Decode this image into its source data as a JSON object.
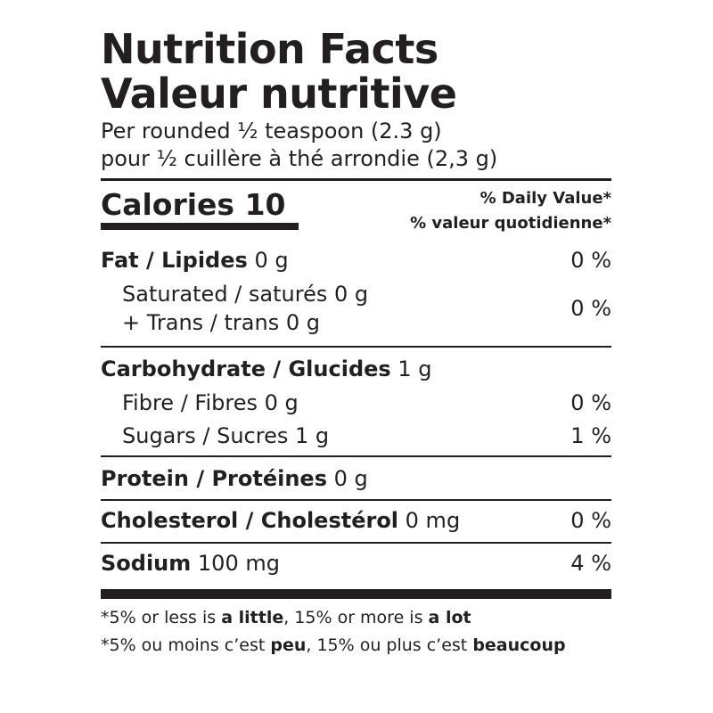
{
  "title_en": "Nutrition Facts",
  "title_fr": "Valeur nutritive",
  "serving_en": "Per rounded ½ teaspoon (2.3 g)",
  "serving_fr": "pour ½ cuillère à thé arrondie (2,3 g)",
  "calories": "Calories 10",
  "dv_en": "% Daily Value*",
  "dv_fr": "% valeur quotidienne*",
  "fat": {
    "label": "Fat / Lipides",
    "amount": " 0 g",
    "pct": "0 %"
  },
  "saturated": {
    "text": "Saturated / saturés 0 g"
  },
  "trans": {
    "text": "+ Trans / trans 0 g"
  },
  "sat_trans_pct": "0 %",
  "carbohydrate": {
    "label": "Carbohydrate / Glucides",
    "amount": " 1 g"
  },
  "fibre": {
    "text": "Fibre / Fibres 0 g",
    "pct": "0 %"
  },
  "sugars": {
    "text": "Sugars / Sucres 1 g",
    "pct": "1 %"
  },
  "protein": {
    "label": "Protein / Protéines",
    "amount": " 0 g"
  },
  "cholesterol": {
    "label": "Cholesterol / Cholestérol",
    "amount": " 0 mg",
    "pct": "0 %"
  },
  "sodium": {
    "label": "Sodium",
    "amount": " 100 mg",
    "pct": "4 %"
  },
  "footnote_en": {
    "a": "*5% or less is ",
    "b": "a little",
    "c": ", 15% or more is ",
    "d": "a lot"
  },
  "footnote_fr": {
    "a": "*5% ou moins c’est ",
    "b": "peu",
    "c": ", 15% ou plus c’est ",
    "d": "beaucoup"
  },
  "colors": {
    "ink": "#231f20",
    "background": "#ffffff"
  }
}
